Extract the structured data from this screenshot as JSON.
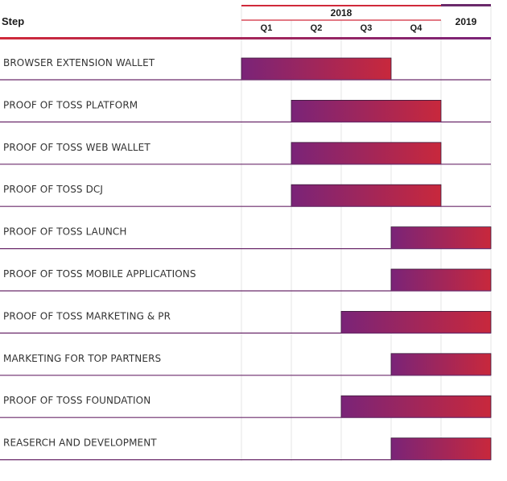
{
  "chart_data": {
    "type": "gantt",
    "header": {
      "step": "Step",
      "year_2018": "2018",
      "year_2019": "2019",
      "quarters": [
        "Q1",
        "Q2",
        "Q3",
        "Q4"
      ]
    },
    "periods": [
      "2018 Q1",
      "2018 Q2",
      "2018 Q3",
      "2018 Q4",
      "2019"
    ],
    "tasks": [
      {
        "name": "BROWSER EXTENSION WALLET",
        "start": "2018 Q1",
        "end": "2018 Q3"
      },
      {
        "name": "PROOF OF TOSS PLATFORM",
        "start": "2018 Q2",
        "end": "2018 Q4"
      },
      {
        "name": "PROOF OF TOSS WEB WALLET",
        "start": "2018 Q2",
        "end": "2018 Q4"
      },
      {
        "name": "PROOF OF TOSS DCJ",
        "start": "2018 Q2",
        "end": "2018 Q4"
      },
      {
        "name": "PROOF OF TOSS LAUNCH",
        "start": "2018 Q4",
        "end": "2019"
      },
      {
        "name": "PROOF OF TOSS MOBILE APPLICATIONS",
        "start": "2018 Q4",
        "end": "2019"
      },
      {
        "name": "PROOF OF TOSS MARKETING & PR",
        "start": "2018 Q3",
        "end": "2019"
      },
      {
        "name": "MARKETING FOR TOP PARTNERS",
        "start": "2018 Q4",
        "end": "2019"
      },
      {
        "name": "PROOF OF TOSS FOUNDATION",
        "start": "2018 Q3",
        "end": "2019"
      },
      {
        "name": "REASERCH AND DEVELOPMENT",
        "start": "2018 Q4",
        "end": "2019"
      }
    ],
    "bar_gradient": [
      "#7a2478",
      "#c8283c"
    ],
    "line_colors": {
      "purple": "#6b2a6b",
      "red": "#d0293a"
    },
    "grid": "vertical"
  }
}
